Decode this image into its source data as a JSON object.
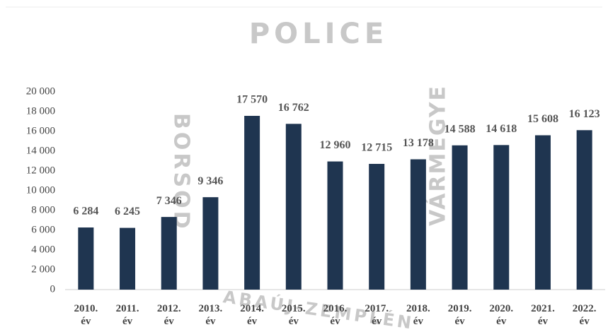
{
  "chart_data": {
    "type": "bar",
    "watermark": [
      "POLICE",
      "BORSOD",
      "ABAÚJ-ZEMPLÉN",
      "VÁRMEGYE"
    ],
    "categories": [
      "2010. év",
      "2011. év",
      "2012. év",
      "2013. év",
      "2014. év",
      "2015. év",
      "2016. év",
      "2017. év",
      "2018. év",
      "2019. év",
      "2020. év",
      "2021. év",
      "2022. év"
    ],
    "values": [
      6284,
      6245,
      7346,
      9346,
      17570,
      16762,
      12960,
      12715,
      13178,
      14588,
      14618,
      15608,
      16123
    ],
    "value_labels": [
      "6 284",
      "6 245",
      "7 346",
      "9 346",
      "17 570",
      "16 762",
      "12 960",
      "12 715",
      "13 178",
      "14 588",
      "14 618",
      "15 608",
      "16 123"
    ],
    "color": "#1f3550",
    "ylim": [
      0,
      20000
    ],
    "yticks": [
      0,
      {
        "value": 2000,
        "label": "2 000"
      },
      {
        "value": 4000,
        "label": "4 000"
      },
      {
        "value": 6000,
        "label": "6 000"
      },
      {
        "value": 8000,
        "label": "8 000"
      },
      {
        "value": 10000,
        "label": "10 000"
      },
      {
        "value": 12000,
        "label": "12 000"
      },
      {
        "value": 14000,
        "label": "14 000"
      },
      {
        "value": 16000,
        "label": "16 000"
      },
      {
        "value": 18000,
        "label": "18 000"
      },
      {
        "value": 20000,
        "label": "20 000"
      }
    ],
    "grid": false
  }
}
